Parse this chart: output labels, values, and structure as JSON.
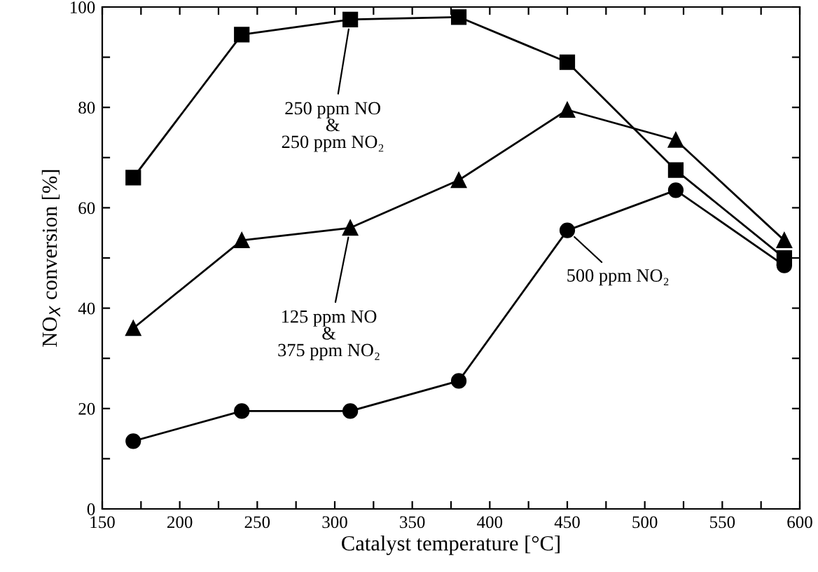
{
  "chart_data": {
    "type": "line",
    "xlabel": "Catalyst temperature [°C]",
    "ylabel": "NO$_{X}$ conversion [%]",
    "x": [
      170,
      240,
      310,
      380,
      450,
      520,
      590
    ],
    "series": [
      {
        "name": "250 ppm NO\n&\n250 ppm NO₂",
        "color": "#000000",
        "marker": "square",
        "values": [
          66,
          94.5,
          97.5,
          98,
          89,
          67.5,
          50
        ]
      },
      {
        "name": "125 ppm NO\n&\n375 ppm NO₂",
        "color": "#000000",
        "marker": "triangle",
        "values": [
          36,
          53.5,
          56,
          65.5,
          79.5,
          73.5,
          53.5
        ]
      },
      {
        "name": "500 ppm NO₂",
        "color": "#000000",
        "marker": "circle",
        "values": [
          13.5,
          19.5,
          19.5,
          25.5,
          55.5,
          63.5,
          48.5
        ]
      }
    ],
    "xlim": [
      150,
      600
    ],
    "ylim": [
      0,
      100
    ],
    "xticks": [
      150,
      {
        "value": 175,
        "label": null
      },
      200,
      {
        "value": 225,
        "label": null
      },
      250,
      {
        "value": 275,
        "label": null
      },
      300,
      {
        "value": 325,
        "label": null
      },
      350,
      {
        "value": 375,
        "label": null
      },
      400,
      {
        "value": 425,
        "label": null
      },
      450,
      {
        "value": 475,
        "label": null
      },
      500,
      {
        "value": 525,
        "label": null
      },
      550,
      {
        "value": 575,
        "label": null
      },
      600
    ],
    "yticks": [
      0,
      {
        "value": 10,
        "label": null
      },
      20,
      {
        "value": 30,
        "label": null
      },
      40,
      {
        "value": 50,
        "label": null
      },
      60,
      {
        "value": 70,
        "label": null
      },
      80,
      {
        "value": 90,
        "label": null
      },
      100
    ],
    "grid": false,
    "line_style": "solid"
  }
}
